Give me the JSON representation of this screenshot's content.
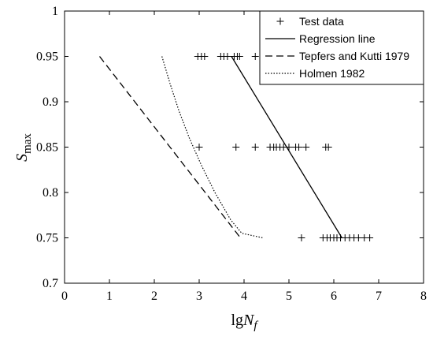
{
  "chart_data": {
    "type": "line",
    "xlabel": {
      "base": "lg",
      "var": "N",
      "sub": "f"
    },
    "ylabel": {
      "var": "S",
      "sub": "max"
    },
    "xlim": [
      0,
      8
    ],
    "ylim": [
      0.7,
      1.0
    ],
    "xticks": [
      0,
      1,
      2,
      3,
      4,
      5,
      6,
      7,
      8
    ],
    "yticks": [
      0.7,
      0.75,
      0.8,
      0.85,
      0.9,
      0.95,
      1.0
    ],
    "xtick_labels": [
      "0",
      "1",
      "2",
      "3",
      "4",
      "5",
      "6",
      "7",
      "8"
    ],
    "ytick_labels": [
      "0.7",
      "0.75",
      "0.8",
      "0.85",
      "0.9",
      "0.95",
      "1"
    ],
    "grid": false,
    "legend": {
      "position": "top-right"
    },
    "series": [
      {
        "name": "Test data",
        "style": "marker-plus",
        "color": "#000000",
        "points": [
          [
            2.97,
            0.95
          ],
          [
            3.05,
            0.95
          ],
          [
            3.12,
            0.95
          ],
          [
            3.48,
            0.95
          ],
          [
            3.55,
            0.95
          ],
          [
            3.63,
            0.95
          ],
          [
            3.78,
            0.95
          ],
          [
            3.85,
            0.95
          ],
          [
            3.9,
            0.95
          ],
          [
            4.25,
            0.95
          ],
          [
            3.0,
            0.85
          ],
          [
            3.82,
            0.85
          ],
          [
            4.25,
            0.85
          ],
          [
            4.58,
            0.85
          ],
          [
            4.66,
            0.85
          ],
          [
            4.72,
            0.85
          ],
          [
            4.8,
            0.85
          ],
          [
            4.88,
            0.85
          ],
          [
            5.0,
            0.85
          ],
          [
            5.15,
            0.85
          ],
          [
            5.22,
            0.85
          ],
          [
            5.38,
            0.85
          ],
          [
            5.82,
            0.85
          ],
          [
            5.88,
            0.85
          ],
          [
            5.28,
            0.75
          ],
          [
            5.76,
            0.75
          ],
          [
            5.85,
            0.75
          ],
          [
            5.92,
            0.75
          ],
          [
            6.0,
            0.75
          ],
          [
            6.07,
            0.75
          ],
          [
            6.15,
            0.75
          ],
          [
            6.25,
            0.75
          ],
          [
            6.35,
            0.75
          ],
          [
            6.45,
            0.75
          ],
          [
            6.55,
            0.75
          ],
          [
            6.68,
            0.75
          ],
          [
            6.8,
            0.75
          ]
        ]
      },
      {
        "name": "Regression line",
        "style": "solid",
        "color": "#000000",
        "points": [
          [
            3.72,
            0.95
          ],
          [
            6.18,
            0.75
          ]
        ]
      },
      {
        "name": "Tepfers and Kutti 1979",
        "style": "dashed",
        "color": "#000000",
        "points": [
          [
            0.78,
            0.95
          ],
          [
            3.92,
            0.75
          ]
        ]
      },
      {
        "name": "Holmen 1982",
        "style": "dotted",
        "color": "#000000",
        "points": [
          [
            2.17,
            0.95
          ],
          [
            2.35,
            0.92
          ],
          [
            2.55,
            0.89
          ],
          [
            2.78,
            0.86
          ],
          [
            3.05,
            0.83
          ],
          [
            3.35,
            0.8
          ],
          [
            3.7,
            0.77
          ],
          [
            3.95,
            0.755
          ],
          [
            4.42,
            0.75
          ]
        ]
      }
    ]
  }
}
